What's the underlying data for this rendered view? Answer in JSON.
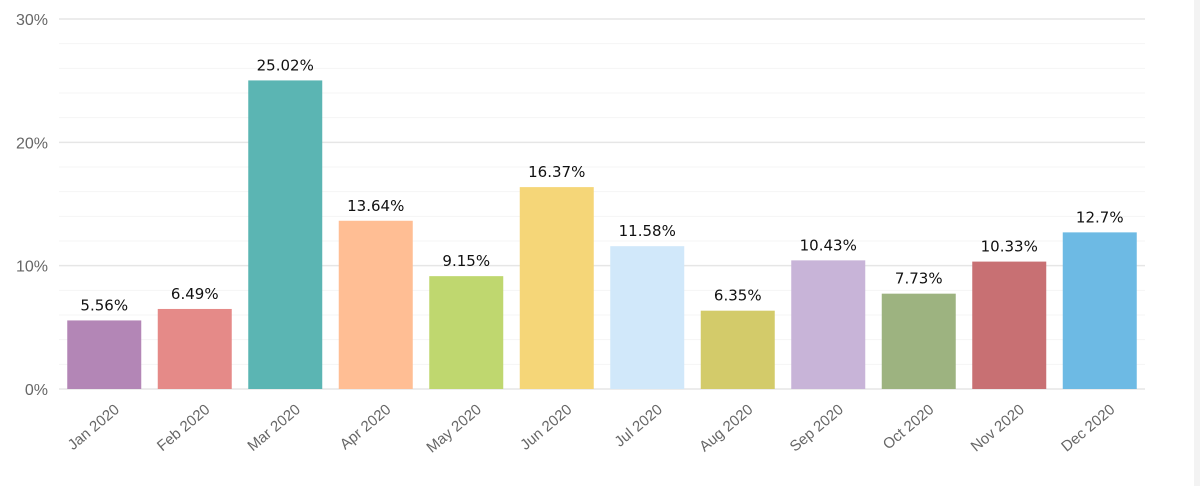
{
  "chart_data": {
    "type": "bar",
    "title": "",
    "xlabel": "",
    "ylabel": "",
    "categories": [
      "Jan 2020",
      "Feb 2020",
      "Mar 2020",
      "Apr 2020",
      "May 2020",
      "Jun 2020",
      "Jul 2020",
      "Aug 2020",
      "Sep 2020",
      "Oct 2020",
      "Nov 2020",
      "Dec 2020"
    ],
    "values": [
      5.56,
      6.49,
      25.02,
      13.64,
      9.15,
      16.37,
      11.58,
      6.35,
      10.43,
      7.73,
      10.33,
      12.7
    ],
    "data_labels": [
      "5.56%",
      "6.49%",
      "25.02%",
      "13.64%",
      "9.15%",
      "16.37%",
      "11.58%",
      "6.35%",
      "10.43%",
      "7.73%",
      "10.33%",
      "12.7%"
    ],
    "colors": [
      "#b386b6",
      "#e58a88",
      "#5bb5b3",
      "#ffbe94",
      "#bfd76f",
      "#f5d678",
      "#d1e8fa",
      "#d3cb6a",
      "#c8b4d8",
      "#9db380",
      "#c87073",
      "#6dbae4"
    ],
    "ylim": [
      0,
      30
    ],
    "yticks": [
      0,
      10,
      20,
      30
    ],
    "ytick_labels": [
      "0%",
      "10%",
      "20%",
      "30%"
    ],
    "minor_grid_step": 2,
    "grid": true,
    "legend": "none"
  }
}
